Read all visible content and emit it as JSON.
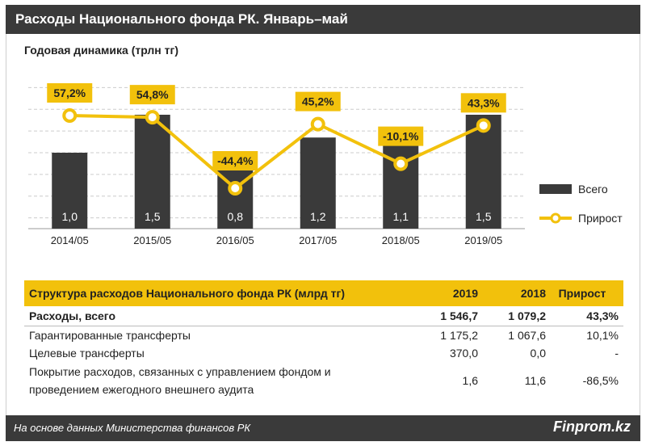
{
  "header": {
    "title": "Расходы Национального фонда РК. Январь–май"
  },
  "chart_data": {
    "type": "bar+line",
    "title": "Годовая динамика  (трлн тг)",
    "categories": [
      "2014/05",
      "2015/05",
      "2016/05",
      "2017/05",
      "2018/05",
      "2019/05"
    ],
    "series": [
      {
        "name": "Всего",
        "type": "bar",
        "values": [
          1.0,
          1.5,
          0.8,
          1.2,
          1.1,
          1.5
        ],
        "labels": [
          "1,0",
          "1,5",
          "0,8",
          "1,2",
          "1,1",
          "1,5"
        ],
        "color": "#3a3a3a"
      },
      {
        "name": "Прирост",
        "type": "line",
        "values": [
          57.2,
          54.8,
          -44.4,
          45.2,
          -10.1,
          43.3
        ],
        "labels": [
          "57,2%",
          "54,8%",
          "-44,4%",
          "45,2%",
          "-10,1%",
          "43,3%"
        ],
        "color": "#f2c10c"
      }
    ],
    "legend": {
      "bar": "Всего",
      "line": "Прирост",
      "position": "right"
    },
    "grid": true
  },
  "table": {
    "headers": [
      "Структура расходов Национального фонда РК (млрд тг)",
      "2019",
      "2018",
      "Прирост"
    ],
    "rows": [
      {
        "label": "Расходы, всего",
        "v2019": "1 546,7",
        "v2018": "1 079,2",
        "growth": "43,3%"
      },
      {
        "label": "Гарантированные трансферты",
        "v2019": "1 175,2",
        "v2018": "1 067,6",
        "growth": "10,1%"
      },
      {
        "label": "Целевые трансферты",
        "v2019": "370,0",
        "v2018": "0,0",
        "growth": "-"
      },
      {
        "label_line1": "Покрытие расходов, связанных с управлением фондом и",
        "label_line2": "проведением ежегодного внешнего аудита",
        "v2019": "1,6",
        "v2018": "11,6",
        "growth": "-86,5%"
      }
    ]
  },
  "footer": {
    "source": "На основе данных Министерства финансов РК",
    "brand": "Finprom.kz"
  },
  "colors": {
    "accent": "#f2c10c",
    "dark": "#3a3a3a"
  }
}
